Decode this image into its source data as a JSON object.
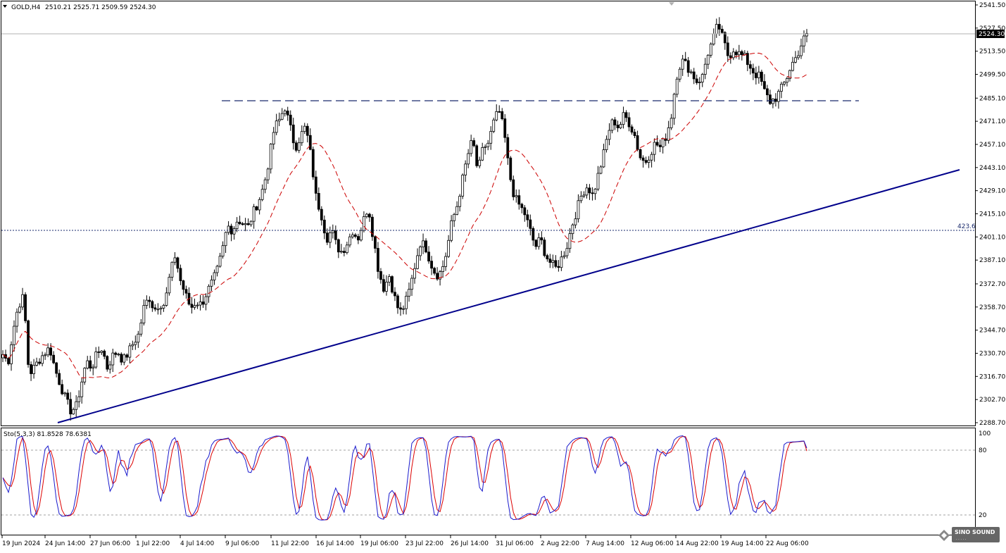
{
  "header": {
    "symbol_label": "GOLD,H4",
    "ohlc_values": "2510.21 2525.71 2509.59 2524.30",
    "stoch_label": "Sto(5,3,3) 81.8528 78.6381"
  },
  "price_axis": {
    "ticks": [
      "2541.50",
      "2527.50",
      "2513.50",
      "2499.50",
      "2485.10",
      "2471.10",
      "2457.10",
      "2443.10",
      "2429.10",
      "2415.10",
      "2401.10",
      "2387.10",
      "2372.70",
      "2358.70",
      "2344.70",
      "2330.70",
      "2316.70",
      "2302.70",
      "2288.70"
    ],
    "current_price_label": "2524.30",
    "fib_label": "423.6"
  },
  "stoch_axis": {
    "ticks": [
      "100",
      "80",
      "20"
    ]
  },
  "time_axis": {
    "labels": [
      "19 Jun 2024",
      "24 Jun 14:00",
      "27 Jun 06:00",
      "1 Jul 22:00",
      "4 Jul 14:00",
      "9 Jul 06:00",
      "11 Jul 22:00",
      "16 Jul 14:00",
      "19 Jul 06:00",
      "23 Jul 22:00",
      "26 Jul 14:00",
      "31 Jul 06:00",
      "2 Aug 22:00",
      "7 Aug 14:00",
      "12 Aug 06:00",
      "14 Aug 22:00",
      "19 Aug 14:00",
      "22 Aug 06:00"
    ]
  },
  "watermark": {
    "brand": "SINO SOUND"
  },
  "colors": {
    "candle": "#000000",
    "ma_line": "#cc0000",
    "trendline": "#00008b",
    "resistance": "#1a2a6c",
    "stoch_main": "#1a1acd",
    "stoch_signal": "#dd0000",
    "current_price_bg": "#000000"
  },
  "chart_data": {
    "type": "candlestick",
    "symbol": "GOLD",
    "timeframe": "H4",
    "price_range": [
      2288.7,
      2541.5
    ],
    "current_price": 2524.3,
    "resistance_level": 2485.6,
    "fib_level": {
      "label": "423.6",
      "price": 2405.1
    },
    "trendline": {
      "from": [
        "24 Jun 14:00",
        2289.5
      ],
      "to": [
        "22 Aug 06:00",
        2443.5
      ]
    },
    "ma_type": "moving average (red dashed)",
    "close_path": [
      2330,
      2325,
      2345,
      2360,
      2365,
      2318,
      2322,
      2327,
      2331,
      2334,
      2321,
      2312,
      2303,
      2296,
      2298,
      2312,
      2326,
      2322,
      2330,
      2334,
      2322,
      2329,
      2332,
      2326,
      2331,
      2337,
      2342,
      2358,
      2365,
      2357,
      2361,
      2360,
      2378,
      2390,
      2375,
      2366,
      2358,
      2362,
      2360,
      2367,
      2373,
      2380,
      2392,
      2408,
      2405,
      2412,
      2409,
      2407,
      2416,
      2423,
      2432,
      2448,
      2467,
      2472,
      2480,
      2468,
      2455,
      2462,
      2468,
      2450,
      2425,
      2415,
      2400,
      2405,
      2395,
      2392,
      2398,
      2405,
      2400,
      2410,
      2420,
      2400,
      2380,
      2370,
      2378,
      2365,
      2355,
      2360,
      2370,
      2385,
      2398,
      2395,
      2385,
      2378,
      2380,
      2392,
      2410,
      2420,
      2435,
      2450,
      2460,
      2440,
      2455,
      2458,
      2470,
      2478,
      2465,
      2440,
      2425,
      2420,
      2415,
      2405,
      2395,
      2400,
      2390,
      2385,
      2382,
      2388,
      2395,
      2408,
      2418,
      2428,
      2432,
      2426,
      2438,
      2450,
      2465,
      2472,
      2467,
      2475,
      2470,
      2463,
      2450,
      2446,
      2452,
      2458,
      2455,
      2462,
      2473,
      2498,
      2508,
      2505,
      2500,
      2495,
      2498,
      2512,
      2520,
      2530,
      2520,
      2510,
      2515,
      2512,
      2510,
      2505,
      2500,
      2498,
      2488,
      2483,
      2485,
      2490,
      2496,
      2505,
      2510,
      2518,
      2524
    ],
    "stochastic": {
      "params": "5,3,3",
      "main_value": 81.8528,
      "signal_value": 78.6381,
      "levels": [
        20,
        80
      ],
      "range": [
        0,
        100
      ]
    }
  }
}
